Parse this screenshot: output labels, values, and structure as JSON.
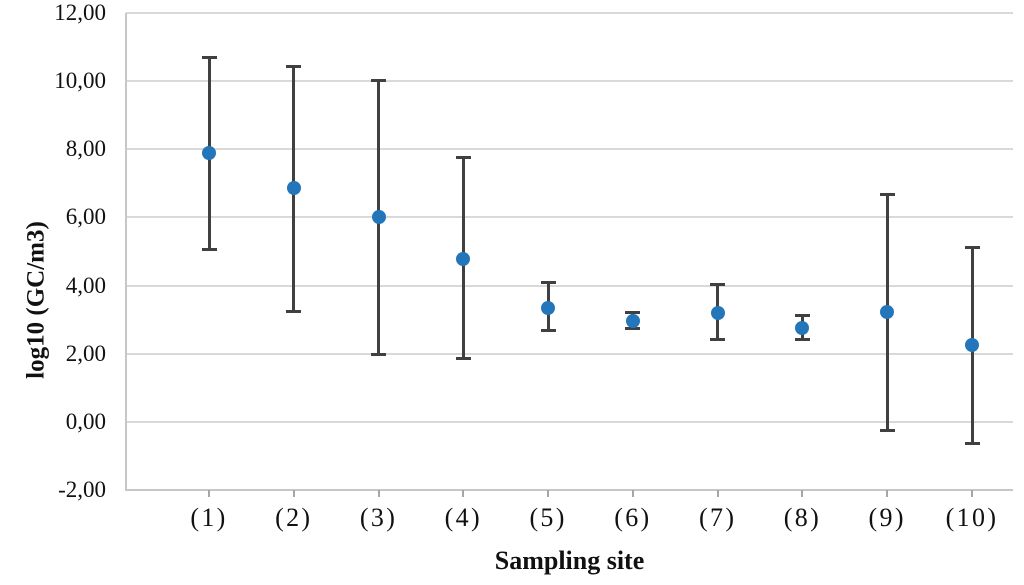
{
  "figure": {
    "background": "#ffffff"
  },
  "chart_data": {
    "type": "scatter",
    "title": "",
    "xlabel": "Sampling site",
    "ylabel": "log10 (GC/m3)",
    "categories": [
      "(1)",
      "(2)",
      "(3)",
      "(4)",
      "(5)",
      "(6)",
      "(7)",
      "(8)",
      "(9)",
      "(10)"
    ],
    "series": [
      {
        "means": [
          7.9,
          6.85,
          6.0,
          4.78,
          3.35,
          2.97,
          3.2,
          2.76,
          3.21,
          2.25
        ],
        "upper": [
          10.68,
          10.42,
          10.03,
          7.75,
          4.1,
          3.2,
          4.02,
          3.11,
          6.66,
          5.11
        ],
        "lower": [
          5.06,
          3.24,
          1.97,
          1.85,
          2.67,
          2.73,
          2.43,
          2.43,
          -0.24,
          -0.64
        ]
      }
    ],
    "ylim": [
      -2,
      12
    ],
    "ytick_step": 2,
    "ytick_labels": [
      "12,00",
      "10,00",
      "8,00",
      "6,00",
      "4,00",
      "2,00",
      "0,00",
      "-2,00"
    ],
    "grid": "horizontal",
    "legend": "none",
    "decimal_separator": ",",
    "colors": {
      "marker": "#2376BA",
      "error_bar": "#404040",
      "gridline": "#D9D9D9",
      "axis_line": "#C6C6C6",
      "tick_mark": "#A6A6A6",
      "text": "#111111"
    }
  }
}
